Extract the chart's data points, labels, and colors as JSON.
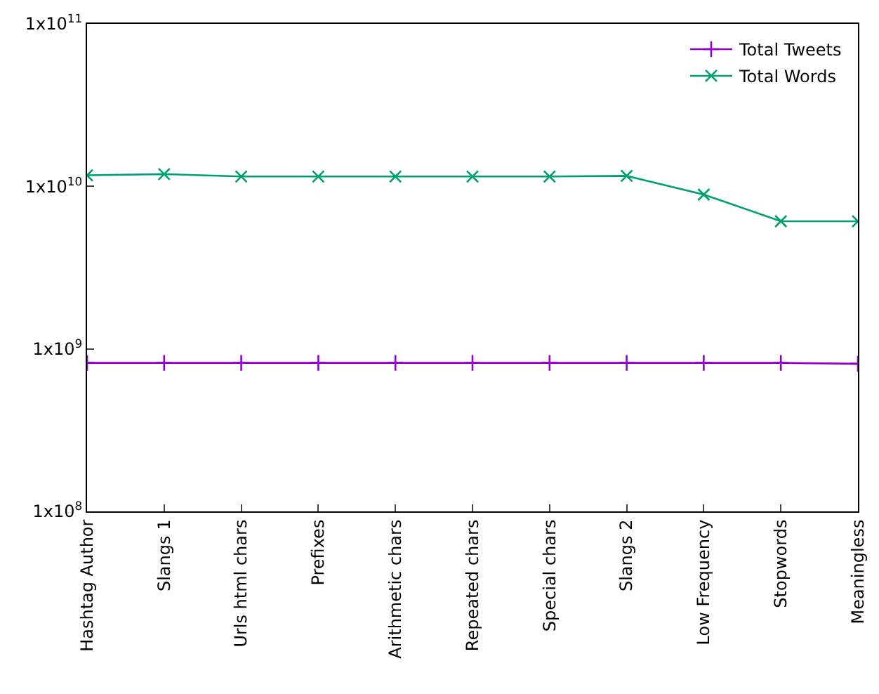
{
  "chart_data": {
    "type": "line",
    "categories": [
      "Hashtag Author",
      "Slangs 1",
      "Urls html chars",
      "Prefixes",
      "Arithmetic chars",
      "Repeated chars",
      "Special chars",
      "Slangs 2",
      "Low Frequency",
      "Stopwords",
      "Meaningless"
    ],
    "series": [
      {
        "name": "Total Tweets",
        "color": "#9400d3",
        "values": [
          820000000,
          820000000,
          820000000,
          820000000,
          820000000,
          820000000,
          820000000,
          820000000,
          820000000,
          820000000,
          810000000
        ]
      },
      {
        "name": "Total Words",
        "color": "#009e73",
        "values": [
          11700000000,
          11900000000,
          11500000000,
          11500000000,
          11500000000,
          11500000000,
          11500000000,
          11600000000,
          8900000000,
          6100000000,
          6100000000
        ]
      }
    ],
    "log": true,
    "ylim": [
      100000000,
      100000000000
    ],
    "yticks": [
      {
        "value": 100000000,
        "label": "1x10$^{8}$"
      },
      {
        "value": 1000000000,
        "label": "1x10$^{9}$"
      },
      {
        "value": 10000000000,
        "label": "1x10$^{10}$"
      },
      {
        "value": 100000000000,
        "label": "1x10$^{11}$"
      }
    ],
    "legend": "top right",
    "marker": "cross",
    "line_style": "solid"
  }
}
